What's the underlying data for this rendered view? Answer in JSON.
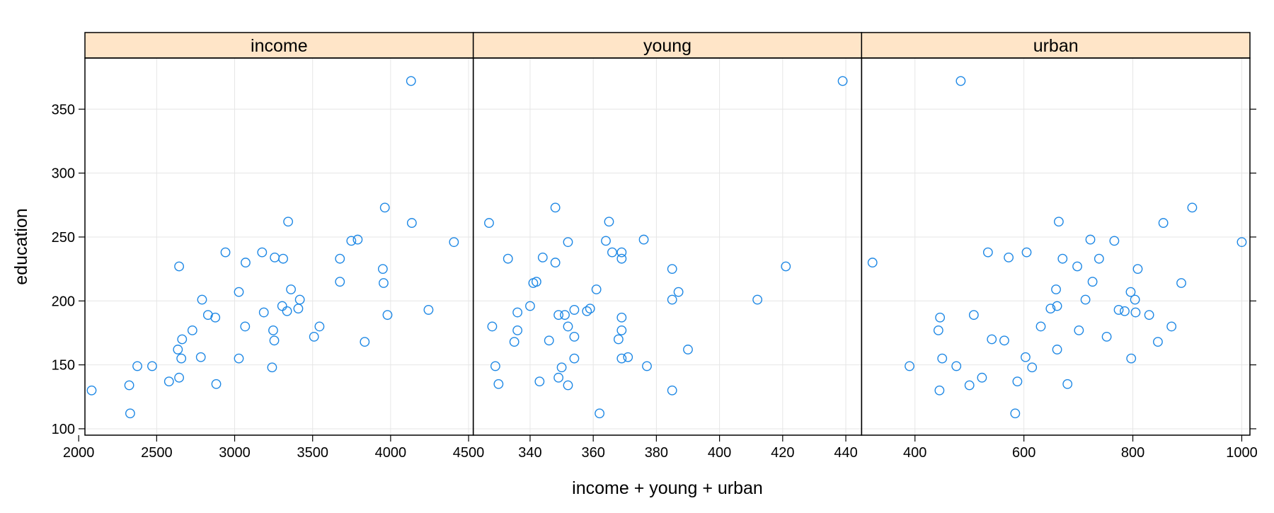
{
  "chart_data": {
    "type": "scatter",
    "xlabel": "income + young + urban",
    "ylabel": "education",
    "ylim": [
      95,
      390
    ],
    "yticks": [
      100,
      150,
      200,
      250,
      300,
      350
    ],
    "grid": true,
    "colors": {
      "point": "#1e88e5",
      "strip": "#ffe5c8",
      "grid": "#e6e6e6"
    },
    "y": [
      189,
      169,
      230,
      168,
      180,
      193,
      261,
      214,
      201,
      172,
      194,
      189,
      233,
      209,
      262,
      234,
      177,
      177,
      187,
      148,
      196,
      248,
      247,
      246,
      180,
      149,
      155,
      149,
      156,
      191,
      140,
      137,
      112,
      130,
      134,
      162,
      135,
      155,
      238,
      170,
      238,
      192,
      227,
      207,
      201,
      225,
      215,
      233,
      273,
      372
    ],
    "panels": [
      {
        "name": "income",
        "xlim": [
          2040,
          4530
        ],
        "xticks": [
          2000,
          2500,
          3000,
          3500,
          4000,
          4500
        ],
        "x": [
          3980,
          3254,
          3070,
          3834,
          3067,
          4243,
          4136,
          3955,
          3418,
          3509,
          3408,
          2829,
          3311,
          3361,
          3343,
          3257,
          2729,
          3247,
          2876,
          3240,
          3305,
          3789,
          3748,
          4406,
          3544,
          2471,
          3027,
          2376,
          2783,
          3187,
          2644,
          2579,
          2330,
          2083,
          2324,
          2636,
          2882,
          2658,
          3176,
          2663,
          2941,
          3336,
          2644,
          3027,
          2791,
          3950,
          3675,
          3675,
          3963,
          4131
        ]
      },
      {
        "name": "young",
        "xlim": [
          322,
          445
        ],
        "xticks": [
          340,
          360,
          380,
          400,
          420,
          440
        ],
        "x": [
          351,
          346,
          348,
          335,
          328,
          354,
          327,
          341,
          385,
          354,
          359,
          349,
          369,
          361,
          365,
          344,
          336,
          369,
          369,
          350,
          340,
          376,
          364,
          352,
          352,
          329,
          354,
          377,
          371,
          336,
          349,
          343,
          362,
          385,
          352,
          390,
          330,
          369,
          366,
          368,
          369,
          358,
          421,
          387,
          412,
          385,
          342,
          333,
          348,
          439
        ]
      },
      {
        "name": "urban",
        "xlim": [
          302,
          1015
        ],
        "xticks": [
          400,
          600,
          800,
          1000
        ],
        "x": [
          508,
          564,
          322,
          846,
          871,
          774,
          856,
          889,
          713,
          752,
          649,
          830,
          738,
          659,
          664,
          572,
          701,
          443,
          446,
          615,
          661,
          722,
          766,
          1000,
          631,
          390,
          450,
          476,
          603,
          805,
          523,
          588,
          584,
          445,
          500,
          661,
          680,
          797,
          534,
          541,
          605,
          785,
          698,
          796,
          804,
          809,
          726,
          671,
          909,
          484
        ]
      }
    ]
  }
}
